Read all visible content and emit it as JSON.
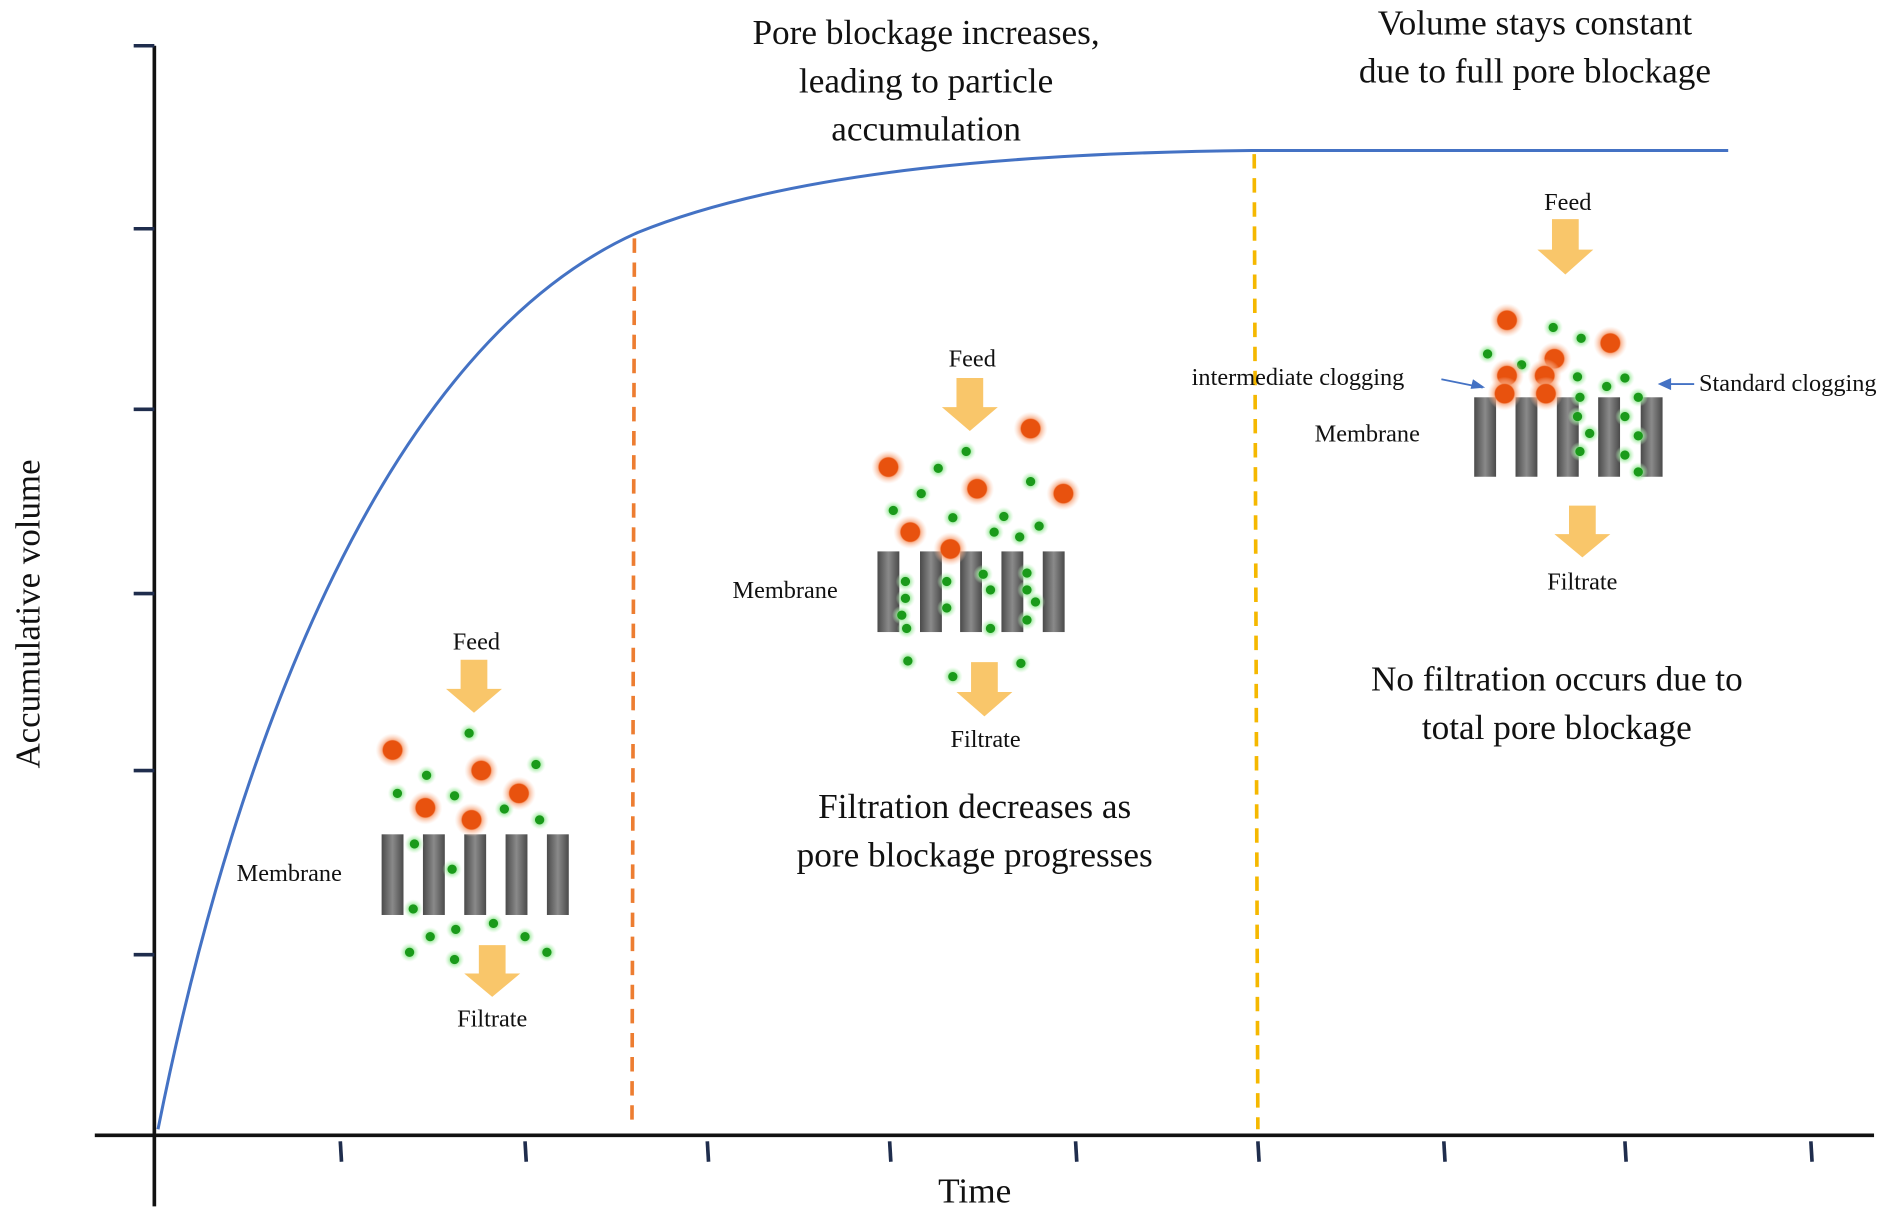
{
  "axes": {
    "y_label": "Accumulative volume",
    "x_label": "Time"
  },
  "annotations": {
    "accumulation": [
      "Pore blockage increases,",
      "leading to particle",
      "accumulation"
    ],
    "constant": [
      "Volume stays constant",
      "due to full pore blockage"
    ],
    "filtration_decreases": [
      "Filtration decreases as",
      "pore blockage progresses"
    ],
    "no_filtration": [
      "No filtration occurs due to",
      "total pore blockage"
    ]
  },
  "stages": [
    {
      "feed": "Feed",
      "membrane": "Membrane",
      "filtrate": "Filtrate"
    },
    {
      "feed": "Feed",
      "membrane": "Membrane",
      "filtrate": "Filtrate"
    },
    {
      "feed": "Feed",
      "membrane": "Membrane",
      "filtrate": "Filtrate"
    }
  ],
  "clogging": {
    "intermediate": "intermediate clogging",
    "standard": "Standard clogging"
  }
}
